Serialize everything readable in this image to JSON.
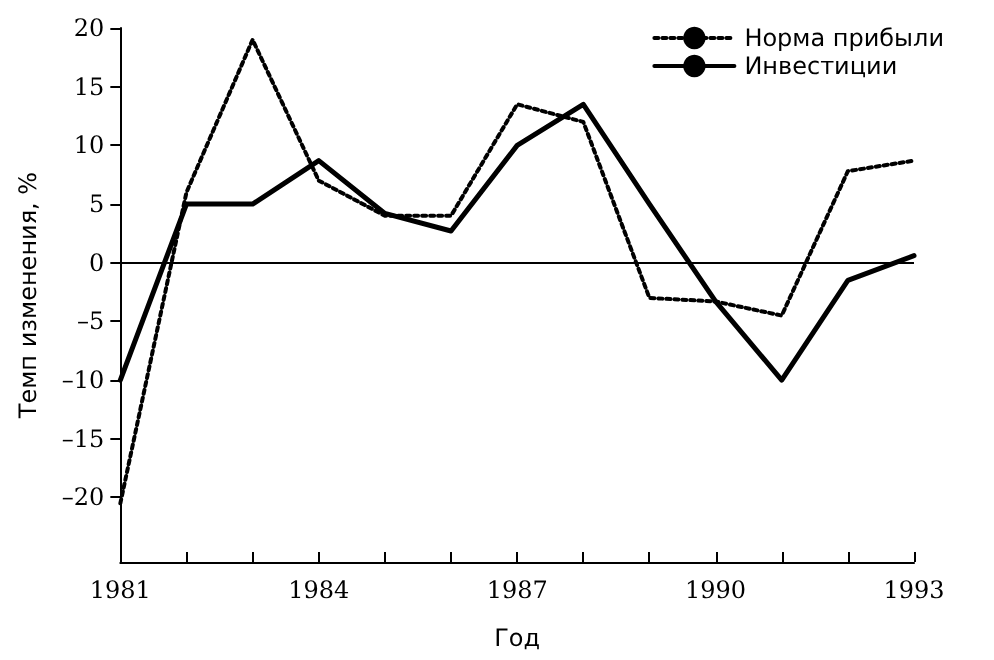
{
  "chart_data": {
    "type": "line",
    "xlabel": "Год",
    "ylabel": "Темп изменения, %",
    "x": [
      1981,
      1982,
      1983,
      1984,
      1985,
      1986,
      1987,
      1988,
      1989,
      1990,
      1991,
      1992,
      1993
    ],
    "series": [
      {
        "name": "Норма прибыли",
        "color": "#000000",
        "line_style": "dotted",
        "values": [
          -20.5,
          6,
          19,
          7,
          4,
          4,
          13.5,
          12,
          -3,
          -3.3,
          -4.5,
          7.8,
          8.7
        ]
      },
      {
        "name": "Инвестиции",
        "color": "#000000",
        "line_style": "solid",
        "values": [
          -10,
          5,
          5,
          8.7,
          4.2,
          2.7,
          10,
          13.5,
          5,
          -3.3,
          -10,
          -1.5,
          0.6
        ]
      }
    ],
    "xlim": [
      1981,
      1993
    ],
    "xticks": [
      1981,
      {
        "value": 1982,
        "label": null
      },
      {
        "value": 1983,
        "label": null
      },
      1984,
      {
        "value": 1985,
        "label": null
      },
      {
        "value": 1986,
        "label": null
      },
      1987,
      {
        "value": 1988,
        "label": null
      },
      {
        "value": 1989,
        "label": null
      },
      1990,
      {
        "value": 1991,
        "label": null
      },
      {
        "value": 1992,
        "label": null
      },
      1993
    ],
    "ylim": [
      -25.5,
      20
    ],
    "yticks": [
      {
        "value": -20,
        "label": "–20"
      },
      {
        "value": -15,
        "label": "–15"
      },
      {
        "value": -10,
        "label": "–10"
      },
      {
        "value": -5,
        "label": "–5"
      },
      0,
      5,
      10,
      15,
      20
    ],
    "ref_lines": [
      {
        "axis": "y",
        "value": 0,
        "label": null
      }
    ],
    "legend": "top right",
    "grid": false,
    "marker": "none"
  }
}
